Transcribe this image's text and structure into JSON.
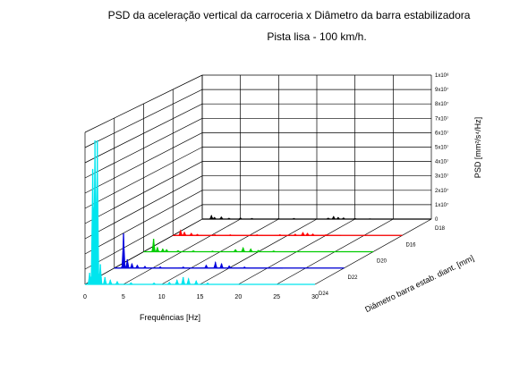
{
  "chart_data": {
    "type": "area",
    "title": "PSD da aceleração vertical da carroceria x Diâmetro da barra estabilizadora",
    "subtitle": "Pista lisa - 100 km/h.",
    "xlabel": "Frequências [Hz]",
    "ylabel": "PSD [mm²/s⁴/Hz]",
    "zlabel": "Diâmetro barra estab. diant. [mm]",
    "xlim": [
      0,
      30
    ],
    "x_ticks": [
      "0",
      "5",
      "10",
      "15",
      "20",
      "25",
      "30"
    ],
    "y_ticks": [
      "0",
      "1x10⁷",
      "2x10⁷",
      "3x10⁷",
      "4x10⁷",
      "5x10⁷",
      "6x10⁷",
      "7x10⁷",
      "8x10⁷",
      "9x10⁷",
      "1x10⁸"
    ],
    "ylim": [
      0,
      100000000
    ],
    "grid": true,
    "series": [
      {
        "name": "D18",
        "color": "#000000",
        "peaks": [
          {
            "f": 1.2,
            "v": 2500000
          },
          {
            "f": 1.6,
            "v": 1200000
          },
          {
            "f": 2.5,
            "v": 1500000
          },
          {
            "f": 3.5,
            "v": 600000
          },
          {
            "f": 5.0,
            "v": 900000
          },
          {
            "f": 6.5,
            "v": 500000
          },
          {
            "f": 10.0,
            "v": 400000
          },
          {
            "f": 12.0,
            "v": 500000
          },
          {
            "f": 16.5,
            "v": 700000
          },
          {
            "f": 17.2,
            "v": 1800000
          },
          {
            "f": 17.8,
            "v": 1200000
          },
          {
            "f": 18.5,
            "v": 900000
          },
          {
            "f": 20.0,
            "v": 500000
          },
          {
            "f": 22.0,
            "v": 400000
          }
        ]
      },
      {
        "name": "D16",
        "color": "#ff0000",
        "peaks": [
          {
            "f": 1.0,
            "v": 3500000
          },
          {
            "f": 1.5,
            "v": 2200000
          },
          {
            "f": 2.4,
            "v": 1500000
          },
          {
            "f": 3.2,
            "v": 800000
          },
          {
            "f": 5.5,
            "v": 600000
          },
          {
            "f": 7.5,
            "v": 500000
          },
          {
            "f": 11.0,
            "v": 500000
          },
          {
            "f": 14.0,
            "v": 600000
          },
          {
            "f": 16.0,
            "v": 900000
          },
          {
            "f": 17.0,
            "v": 2000000
          },
          {
            "f": 17.6,
            "v": 1500000
          },
          {
            "f": 18.3,
            "v": 1000000
          },
          {
            "f": 20.0,
            "v": 500000
          }
        ]
      },
      {
        "name": "D20",
        "color": "#00cc00",
        "peaks": [
          {
            "f": 1.3,
            "v": 9000000
          },
          {
            "f": 1.8,
            "v": 3000000
          },
          {
            "f": 2.5,
            "v": 2000000
          },
          {
            "f": 3.0,
            "v": 1500000
          },
          {
            "f": 4.5,
            "v": 800000
          },
          {
            "f": 6.5,
            "v": 700000
          },
          {
            "f": 9.0,
            "v": 500000
          },
          {
            "f": 12.0,
            "v": 1500000
          },
          {
            "f": 13.0,
            "v": 2800000
          },
          {
            "f": 14.0,
            "v": 2000000
          },
          {
            "f": 15.0,
            "v": 1000000
          },
          {
            "f": 17.0,
            "v": 600000
          }
        ]
      },
      {
        "name": "D22",
        "color": "#0000dd",
        "peaks": [
          {
            "f": 1.2,
            "v": 24000000
          },
          {
            "f": 1.7,
            "v": 6000000
          },
          {
            "f": 2.3,
            "v": 3000000
          },
          {
            "f": 3.0,
            "v": 2000000
          },
          {
            "f": 4.0,
            "v": 1200000
          },
          {
            "f": 6.0,
            "v": 900000
          },
          {
            "f": 9.0,
            "v": 800000
          },
          {
            "f": 12.0,
            "v": 2000000
          },
          {
            "f": 13.2,
            "v": 4000000
          },
          {
            "f": 14.0,
            "v": 3000000
          },
          {
            "f": 15.0,
            "v": 1500000
          },
          {
            "f": 17.0,
            "v": 800000
          }
        ]
      },
      {
        "name": "D24",
        "color": "#00e5ee",
        "peaks": [
          {
            "f": 0.6,
            "v": 8000000
          },
          {
            "f": 1.0,
            "v": 80000000
          },
          {
            "f": 1.3,
            "v": 100000000
          },
          {
            "f": 1.6,
            "v": 100000000
          },
          {
            "f": 2.0,
            "v": 14000000
          },
          {
            "f": 2.6,
            "v": 5000000
          },
          {
            "f": 3.3,
            "v": 3000000
          },
          {
            "f": 4.2,
            "v": 2000000
          },
          {
            "f": 6.0,
            "v": 1200000
          },
          {
            "f": 9.0,
            "v": 1000000
          },
          {
            "f": 11.0,
            "v": 1500000
          },
          {
            "f": 12.0,
            "v": 3000000
          },
          {
            "f": 12.8,
            "v": 5000000
          },
          {
            "f": 13.5,
            "v": 4000000
          },
          {
            "f": 14.5,
            "v": 2500000
          },
          {
            "f": 16.0,
            "v": 1000000
          }
        ]
      }
    ]
  }
}
